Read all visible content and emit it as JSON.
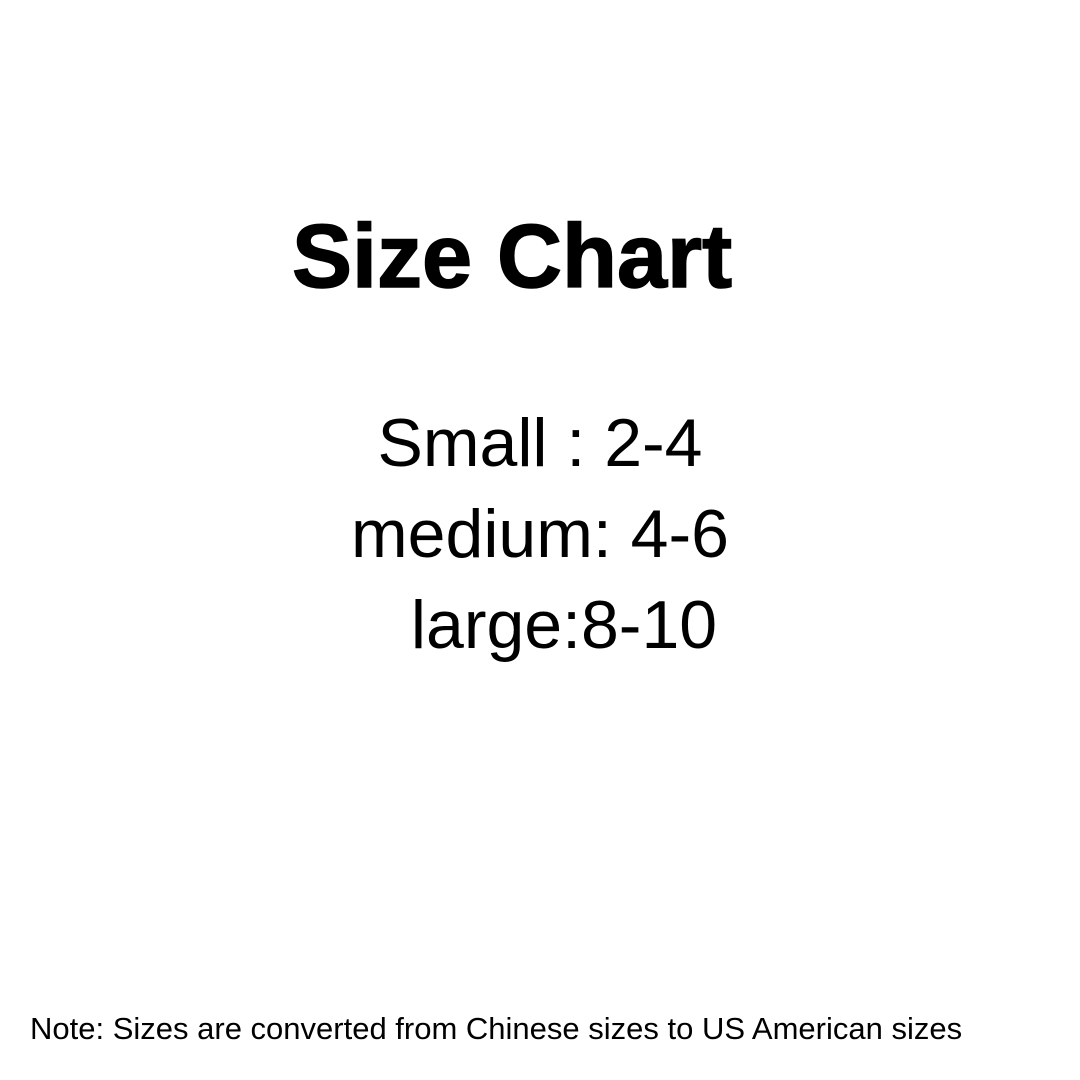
{
  "colors": {
    "background": "#ffffff",
    "text": "#000000"
  },
  "title": "Size Chart",
  "size_chart": {
    "lines": [
      "Small : 2-4",
      "medium: 4-6",
      "large:8-10"
    ],
    "entries": [
      {
        "label": "Small",
        "us_size_range": "2-4"
      },
      {
        "label": "medium",
        "us_size_range": "4-6"
      },
      {
        "label": "large",
        "us_size_range": "8-10"
      }
    ]
  },
  "note": "Note: Sizes are converted from Chinese sizes to US American sizes"
}
